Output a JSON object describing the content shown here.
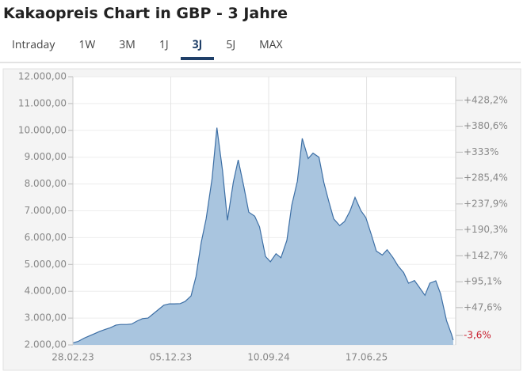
{
  "tabs": [
    "Intraday",
    "1W",
    "3M",
    "1J",
    "3J",
    "5J",
    "MAX"
  ],
  "active_tab": 4,
  "chart_data": {
    "type": "area",
    "title": "Kakaopreis Chart in GBP - 3 Jahre",
    "x": [
      "2023-03-01",
      "2023-03-15",
      "2023-04-01",
      "2023-04-15",
      "2023-05-01",
      "2023-05-15",
      "2023-06-01",
      "2023-06-15",
      "2023-07-01",
      "2023-07-15",
      "2023-08-01",
      "2023-08-15",
      "2023-09-01",
      "2023-09-15",
      "2023-10-01",
      "2023-10-15",
      "2023-11-01",
      "2023-11-15",
      "2023-12-01",
      "2023-12-15",
      "2024-01-01",
      "2024-01-15",
      "2024-02-01",
      "2024-02-15",
      "2024-03-01",
      "2024-03-15",
      "2024-04-01",
      "2024-04-15",
      "2024-05-01",
      "2024-05-15",
      "2024-06-01",
      "2024-06-15",
      "2024-07-01",
      "2024-07-15",
      "2024-08-01",
      "2024-08-15",
      "2024-09-01",
      "2024-09-15",
      "2024-10-01",
      "2024-10-15",
      "2024-11-01",
      "2024-11-15",
      "2024-12-01",
      "2024-12-15",
      "2025-01-01",
      "2025-01-15",
      "2025-02-01",
      "2025-02-15",
      "2025-03-01",
      "2025-03-15",
      "2025-04-01",
      "2025-04-15",
      "2025-05-01",
      "2025-05-15",
      "2025-06-01",
      "2025-06-15",
      "2025-07-01",
      "2025-07-15",
      "2025-08-01",
      "2025-08-15",
      "2025-09-01",
      "2025-09-15",
      "2025-10-01",
      "2025-10-15",
      "2025-11-01",
      "2025-11-15",
      "2025-12-01",
      "2025-12-15",
      "2026-01-01",
      "2026-01-15",
      "2026-02-01",
      "2026-02-15",
      "2026-02-20"
    ],
    "series": [
      {
        "name": "Kakaopreis",
        "color": "#3d6fa5",
        "fill": "#a9c5df",
        "values": [
          2080,
          2130,
          2250,
          2330,
          2420,
          2500,
          2580,
          2640,
          2740,
          2760,
          2760,
          2780,
          2900,
          2980,
          3000,
          3150,
          3330,
          3480,
          3530,
          3530,
          3540,
          3620,
          3830,
          4550,
          5820,
          6700,
          8200,
          10100,
          8500,
          6650,
          8080,
          8900,
          7900,
          6950,
          6800,
          6400,
          5300,
          5100,
          5400,
          5250,
          5900,
          7200,
          8100,
          9700,
          8950,
          9150,
          9000,
          8050,
          7350,
          6700,
          6450,
          6600,
          7000,
          7500,
          7000,
          6750,
          6100,
          5500,
          5350,
          5550,
          5250,
          4950,
          4700,
          4300,
          4400,
          4150,
          3850,
          4300,
          4390,
          3900,
          2900,
          2400,
          2180
        ]
      }
    ],
    "xlim": [
      "2023-02-28",
      "2026-02-27"
    ],
    "xticks": [
      {
        "value": "2023-02-28",
        "label": "28.02.23"
      },
      {
        "value": "2023-12-05",
        "label": "05.12.23"
      },
      {
        "value": "2024-09-10",
        "label": "10.09.24"
      },
      {
        "value": "2025-06-17",
        "label": "17.06.25"
      }
    ],
    "ylim": [
      2000,
      12000
    ],
    "yticks": [
      {
        "value": 2000,
        "label": "2.000,00"
      },
      {
        "value": 3000,
        "label": "3.000,00"
      },
      {
        "value": 4000,
        "label": "4.000,00"
      },
      {
        "value": 5000,
        "label": "5.000,00"
      },
      {
        "value": 6000,
        "label": "6.000,00"
      },
      {
        "value": 7000,
        "label": "7.000,00"
      },
      {
        "value": 8000,
        "label": "8.000,00"
      },
      {
        "value": 9000,
        "label": "9.000,00"
      },
      {
        "value": 10000,
        "label": "10.000,00"
      },
      {
        "value": 11000,
        "label": "11.000,00"
      },
      {
        "value": 12000,
        "label": "12.000,00"
      }
    ],
    "y2lim": [
      -20.9,
      471.5
    ],
    "y2ticks": [
      {
        "value": -3.6,
        "label": "-3,6%"
      },
      {
        "value": 47.6,
        "label": "+47,6%"
      },
      {
        "value": 95.1,
        "label": "+95,1%"
      },
      {
        "value": 142.7,
        "label": "+142,7%"
      },
      {
        "value": 190.3,
        "label": "+190,3%"
      },
      {
        "value": 237.9,
        "label": "+237,9%"
      },
      {
        "value": 285.4,
        "label": "+285,4%"
      },
      {
        "value": 333,
        "label": "+333%"
      },
      {
        "value": 380.6,
        "label": "+380,6%"
      },
      {
        "value": 428.2,
        "label": "+428,2%"
      }
    ],
    "y2_negative_color": "#c8202f",
    "grid": true
  }
}
